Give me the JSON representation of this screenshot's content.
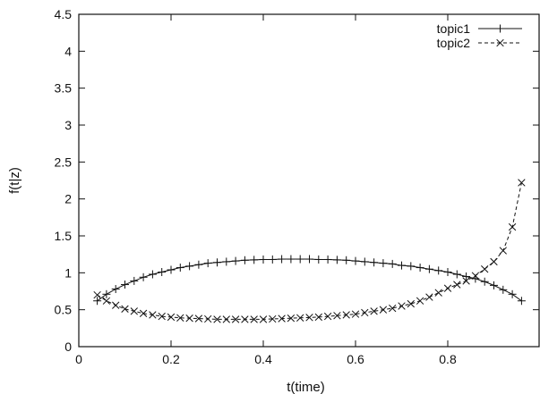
{
  "chart_data": {
    "type": "line",
    "title": "",
    "xlabel": "t(time)",
    "ylabel": "f(t|z)",
    "xlim": [
      0,
      1
    ],
    "ylim": [
      0,
      4.5
    ],
    "xticks": [
      0,
      0.2,
      0.4,
      0.6,
      0.8
    ],
    "xtick_labels": [
      "0",
      "0.2",
      "0.4",
      "0.6",
      "0.8"
    ],
    "yticks": [
      0,
      0.5,
      1,
      1.5,
      2,
      2.5,
      3,
      3.5,
      4,
      4.5
    ],
    "ytick_labels": [
      "0",
      "0.5",
      "1",
      "1.5",
      "2",
      "2.5",
      "3",
      "3.5",
      "4",
      "4.5"
    ],
    "grid": false,
    "legend_position": "top-right",
    "x": [
      0.04,
      0.06,
      0.08,
      0.1,
      0.12,
      0.14,
      0.16,
      0.18,
      0.2,
      0.22,
      0.24,
      0.26,
      0.28,
      0.3,
      0.32,
      0.34,
      0.36,
      0.38,
      0.4,
      0.42,
      0.44,
      0.46,
      0.48,
      0.5,
      0.52,
      0.54,
      0.56,
      0.58,
      0.6,
      0.62,
      0.64,
      0.66,
      0.68,
      0.7,
      0.72,
      0.74,
      0.76,
      0.78,
      0.8,
      0.82,
      0.84,
      0.86,
      0.88,
      0.9,
      0.92,
      0.94,
      0.96
    ],
    "series": [
      {
        "name": "topic1",
        "style": "solid",
        "marker": "plus",
        "values": [
          0.62,
          0.71,
          0.78,
          0.84,
          0.89,
          0.94,
          0.98,
          1.01,
          1.04,
          1.07,
          1.09,
          1.11,
          1.13,
          1.14,
          1.15,
          1.16,
          1.17,
          1.175,
          1.18,
          1.18,
          1.185,
          1.185,
          1.185,
          1.185,
          1.18,
          1.18,
          1.175,
          1.17,
          1.16,
          1.15,
          1.14,
          1.13,
          1.12,
          1.1,
          1.09,
          1.07,
          1.05,
          1.03,
          1.01,
          0.98,
          0.95,
          0.92,
          0.88,
          0.83,
          0.77,
          0.71,
          0.62
        ]
      },
      {
        "name": "topic2",
        "style": "dashed",
        "marker": "cross",
        "values": [
          0.7,
          0.62,
          0.56,
          0.51,
          0.48,
          0.45,
          0.43,
          0.41,
          0.4,
          0.39,
          0.385,
          0.38,
          0.375,
          0.37,
          0.37,
          0.37,
          0.37,
          0.37,
          0.37,
          0.375,
          0.38,
          0.385,
          0.39,
          0.395,
          0.4,
          0.41,
          0.42,
          0.43,
          0.44,
          0.46,
          0.48,
          0.5,
          0.52,
          0.55,
          0.58,
          0.62,
          0.67,
          0.73,
          0.79,
          0.84,
          0.89,
          0.96,
          1.05,
          1.15,
          1.3,
          1.62,
          2.22
        ]
      }
    ]
  }
}
